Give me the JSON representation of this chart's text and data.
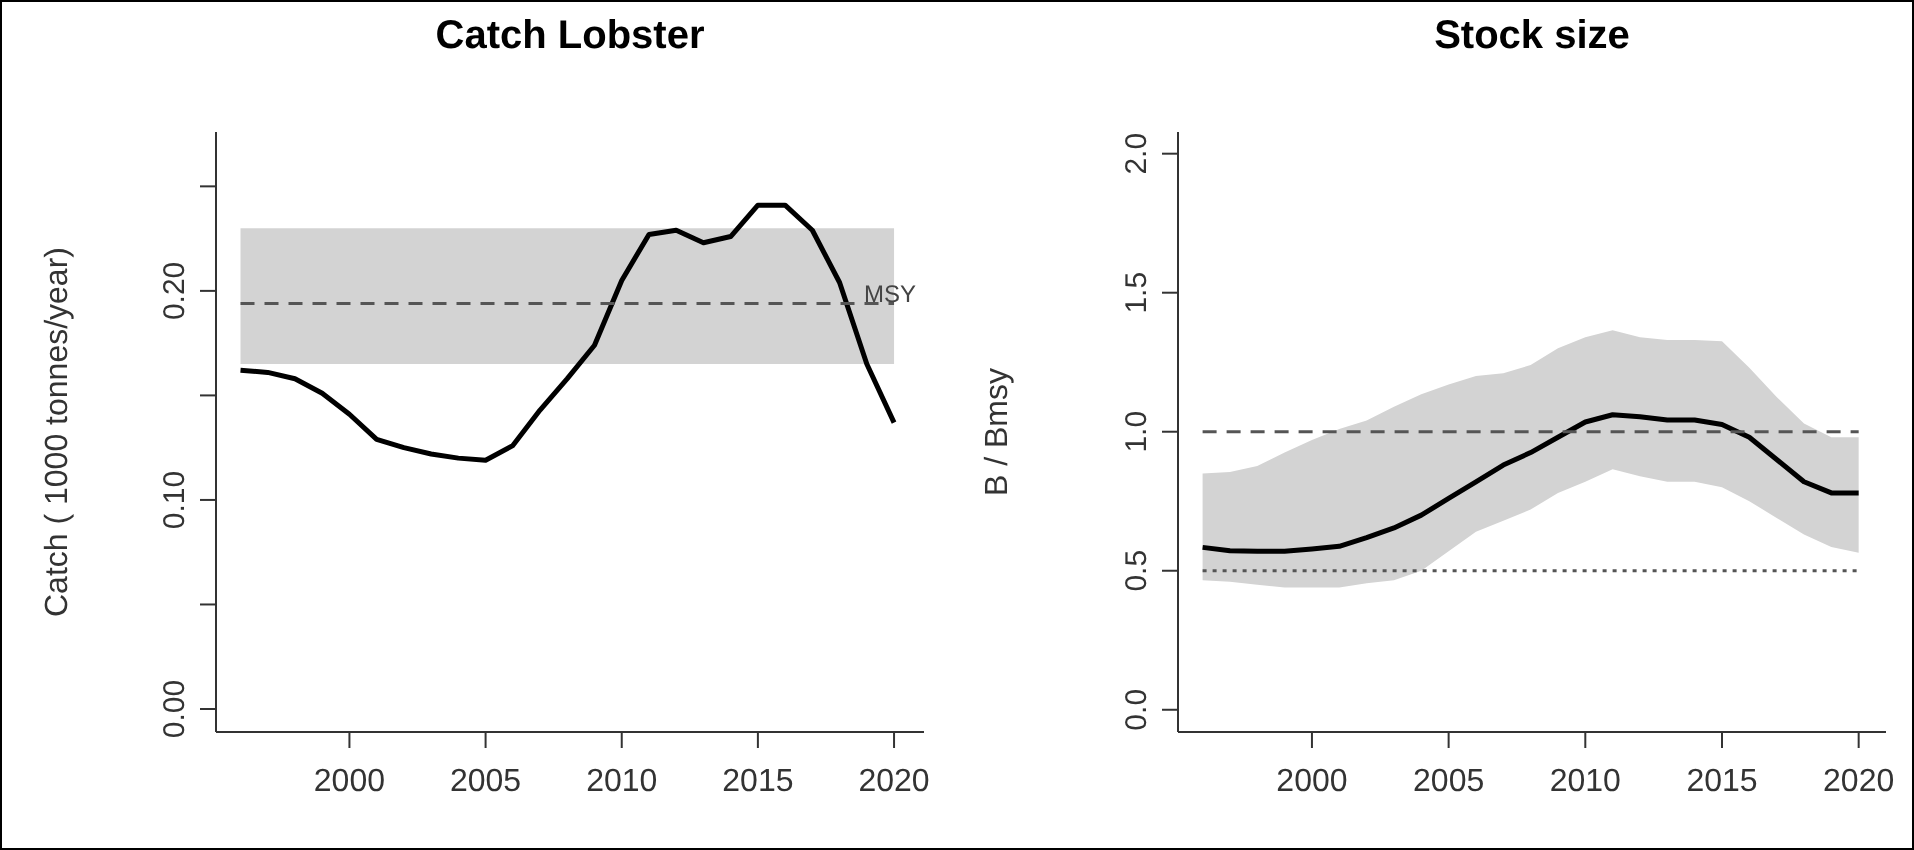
{
  "chart_data": [
    {
      "type": "line",
      "title": "Catch Lobster",
      "ylabel": "Catch ( 1000 tonnes/year)",
      "x": [
        1996,
        1997,
        1998,
        1999,
        2000,
        2001,
        2002,
        2003,
        2004,
        2005,
        2006,
        2007,
        2008,
        2009,
        2010,
        2011,
        2012,
        2013,
        2014,
        2015,
        2016,
        2017,
        2018,
        2019,
        2020
      ],
      "series": [
        {
          "color": "#000000",
          "values": [
            0.162,
            0.161,
            0.158,
            0.151,
            0.141,
            0.129,
            0.125,
            0.122,
            0.12,
            0.119,
            0.126,
            0.143,
            0.158,
            0.174,
            0.205,
            0.227,
            0.229,
            0.223,
            0.226,
            0.241,
            0.241,
            0.229,
            0.204,
            0.165,
            0.137
          ]
        }
      ],
      "xlim": [
        1995.1,
        2021.1
      ],
      "ylim": [
        -0.011,
        0.276
      ],
      "xticks": [
        2000,
        2005,
        2010,
        2015,
        2020
      ],
      "yticks": [
        {
          "value": 0,
          "label": "0.00"
        },
        {
          "value": 0.05,
          "label": null
        },
        {
          "value": 0.1,
          "label": "0.10"
        },
        {
          "value": 0.15,
          "label": null
        },
        {
          "value": 0.2,
          "label": "0.20"
        },
        {
          "value": 0.25,
          "label": null
        }
      ],
      "bands": [
        {
          "axis": "y",
          "from": 0.165,
          "to": 0.23,
          "color": "#d3d3d3"
        }
      ],
      "ref_lines": [
        {
          "axis": "y",
          "value": 0.194,
          "label": "MSY",
          "line_style": "dashed"
        }
      ],
      "grid": false,
      "legend": false
    },
    {
      "type": "line",
      "title": "Stock size",
      "ylabel": "B / Bmsy",
      "x": [
        1996,
        1997,
        1998,
        1999,
        2000,
        2001,
        2002,
        2003,
        2004,
        2005,
        2006,
        2007,
        2008,
        2009,
        2010,
        2011,
        2012,
        2013,
        2014,
        2015,
        2016,
        2017,
        2018,
        2019,
        2020
      ],
      "series": [
        {
          "color": "#000000",
          "values": [
            0.584,
            0.572,
            0.57,
            0.57,
            0.578,
            0.588,
            0.619,
            0.654,
            0.7,
            0.76,
            0.82,
            0.88,
            0.925,
            0.98,
            1.035,
            1.061,
            1.054,
            1.042,
            1.042,
            1.026,
            0.98,
            0.9,
            0.82,
            0.78,
            0.78
          ],
          "lower": [
            0.466,
            0.46,
            0.45,
            0.44,
            0.44,
            0.44,
            0.455,
            0.466,
            0.5,
            0.57,
            0.64,
            0.68,
            0.72,
            0.78,
            0.82,
            0.865,
            0.84,
            0.82,
            0.82,
            0.8,
            0.75,
            0.69,
            0.63,
            0.585,
            0.565
          ],
          "upper": [
            0.85,
            0.855,
            0.877,
            0.925,
            0.97,
            1.01,
            1.04,
            1.09,
            1.135,
            1.17,
            1.2,
            1.21,
            1.24,
            1.3,
            1.34,
            1.365,
            1.34,
            1.33,
            1.33,
            1.325,
            1.23,
            1.125,
            1.03,
            0.98,
            0.98
          ]
        }
      ],
      "xlim": [
        1995.1,
        2021.0
      ],
      "ylim": [
        -0.08,
        2.078
      ],
      "xticks": [
        2000,
        2005,
        2010,
        2015,
        2020
      ],
      "yticks": [
        {
          "value": 0,
          "label": "0.0"
        },
        {
          "value": 0.5,
          "label": "0.5"
        },
        {
          "value": 1,
          "label": "1.0"
        },
        {
          "value": 1.5,
          "label": "1.5"
        },
        {
          "value": 2,
          "label": "2.0"
        }
      ],
      "ref_lines": [
        {
          "axis": "y",
          "value": 1.0,
          "line_style": "dashed"
        },
        {
          "axis": "y",
          "value": 0.5,
          "line_style": "dotted"
        }
      ],
      "grid": false,
      "legend": false
    }
  ]
}
